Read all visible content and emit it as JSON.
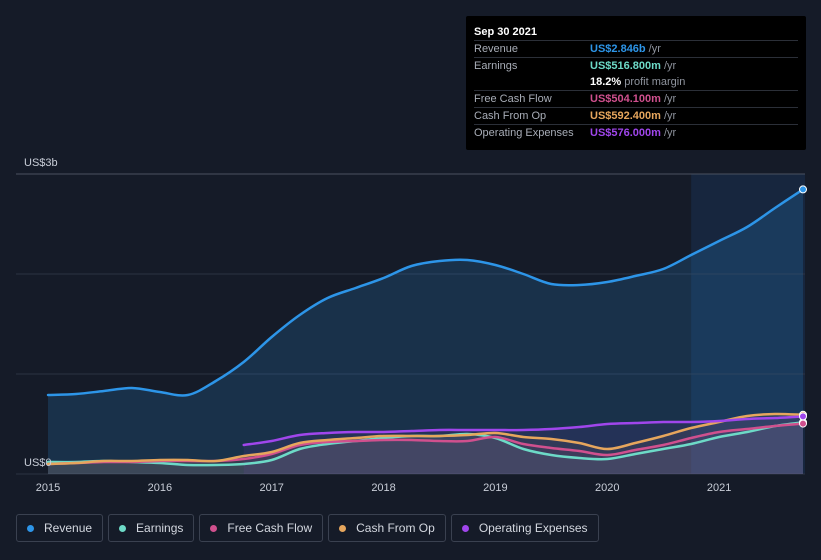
{
  "tooltip": {
    "date": "Sep 30 2021",
    "rows": [
      {
        "label": "Revenue",
        "value": "US$2.846b",
        "unit": "/yr",
        "color": "#2d95e8"
      },
      {
        "label": "Earnings",
        "value": "US$516.800m",
        "unit": "/yr",
        "color": "#6ddac7"
      },
      {
        "label": "",
        "value": "18.2%",
        "unit": "profit margin",
        "color": "#ffffff"
      },
      {
        "label": "Free Cash Flow",
        "value": "US$504.100m",
        "unit": "/yr",
        "color": "#d0508e"
      },
      {
        "label": "Cash From Op",
        "value": "US$592.400m",
        "unit": "/yr",
        "color": "#e6a65d"
      },
      {
        "label": "Operating Expenses",
        "value": "US$576.000m",
        "unit": "/yr",
        "color": "#a046ec"
      }
    ]
  },
  "legend": [
    {
      "label": "Revenue",
      "color": "#2d95e8"
    },
    {
      "label": "Earnings",
      "color": "#6ddac7"
    },
    {
      "label": "Free Cash Flow",
      "color": "#d0508e"
    },
    {
      "label": "Cash From Op",
      "color": "#e6a65d"
    },
    {
      "label": "Operating Expenses",
      "color": "#a046ec"
    }
  ],
  "chart_data": {
    "type": "area",
    "title": "",
    "ylabel_top": "US$3b",
    "ylabel_bottom": "US$0",
    "ylim": [
      0,
      3.0
    ],
    "xlim": [
      2015,
      2021.75
    ],
    "x_ticks": [
      "2015",
      "2016",
      "2017",
      "2018",
      "2019",
      "2020",
      "2021"
    ],
    "x_tick_values": [
      2015,
      2016,
      2017,
      2018,
      2019,
      2020,
      2021
    ],
    "highlight_from": 2020.75,
    "series": [
      {
        "name": "Revenue",
        "color": "#2d95e8",
        "x": [
          2015,
          2015.25,
          2015.5,
          2015.75,
          2016,
          2016.25,
          2016.5,
          2016.75,
          2017,
          2017.25,
          2017.5,
          2017.75,
          2018,
          2018.25,
          2018.5,
          2018.75,
          2019,
          2019.25,
          2019.5,
          2019.75,
          2020,
          2020.25,
          2020.5,
          2020.75,
          2021,
          2021.25,
          2021.5,
          2021.75
        ],
        "values": [
          0.79,
          0.8,
          0.83,
          0.86,
          0.82,
          0.79,
          0.93,
          1.12,
          1.37,
          1.59,
          1.76,
          1.86,
          1.96,
          2.08,
          2.13,
          2.14,
          2.09,
          2.0,
          1.9,
          1.89,
          1.92,
          1.98,
          2.05,
          2.19,
          2.33,
          2.47,
          2.66,
          2.846
        ]
      },
      {
        "name": "Earnings",
        "color": "#6ddac7",
        "x": [
          2015,
          2015.25,
          2015.5,
          2015.75,
          2016,
          2016.25,
          2016.5,
          2016.75,
          2017,
          2017.25,
          2017.5,
          2017.75,
          2018,
          2018.25,
          2018.5,
          2018.75,
          2019,
          2019.25,
          2019.5,
          2019.75,
          2020,
          2020.25,
          2020.5,
          2020.75,
          2021,
          2021.25,
          2021.5,
          2021.75
        ],
        "values": [
          0.12,
          0.12,
          0.13,
          0.12,
          0.11,
          0.09,
          0.09,
          0.1,
          0.14,
          0.25,
          0.3,
          0.33,
          0.36,
          0.38,
          0.38,
          0.4,
          0.36,
          0.25,
          0.19,
          0.16,
          0.15,
          0.2,
          0.25,
          0.3,
          0.37,
          0.42,
          0.48,
          0.517
        ]
      },
      {
        "name": "Free Cash Flow",
        "color": "#d0508e",
        "x": [
          2015,
          2015.25,
          2015.5,
          2015.75,
          2016,
          2016.25,
          2016.5,
          2016.75,
          2017,
          2017.25,
          2017.5,
          2017.75,
          2018,
          2018.25,
          2018.5,
          2018.75,
          2019,
          2019.25,
          2019.5,
          2019.75,
          2020,
          2020.25,
          2020.5,
          2020.75,
          2021,
          2021.25,
          2021.5,
          2021.75
        ],
        "values": [
          0.1,
          0.11,
          0.12,
          0.12,
          0.13,
          0.13,
          0.13,
          0.15,
          0.2,
          0.29,
          0.32,
          0.33,
          0.34,
          0.34,
          0.33,
          0.33,
          0.37,
          0.3,
          0.26,
          0.23,
          0.19,
          0.24,
          0.29,
          0.36,
          0.42,
          0.45,
          0.48,
          0.504
        ]
      },
      {
        "name": "Cash From Op",
        "color": "#e6a65d",
        "x": [
          2015,
          2015.25,
          2015.5,
          2015.75,
          2016,
          2016.25,
          2016.5,
          2016.75,
          2017,
          2017.25,
          2017.5,
          2017.75,
          2018,
          2018.25,
          2018.5,
          2018.75,
          2019,
          2019.25,
          2019.5,
          2019.75,
          2020,
          2020.25,
          2020.5,
          2020.75,
          2021,
          2021.25,
          2021.5,
          2021.75
        ],
        "values": [
          0.1,
          0.11,
          0.13,
          0.13,
          0.14,
          0.14,
          0.13,
          0.18,
          0.22,
          0.31,
          0.34,
          0.36,
          0.38,
          0.38,
          0.38,
          0.39,
          0.41,
          0.37,
          0.35,
          0.31,
          0.25,
          0.31,
          0.38,
          0.46,
          0.52,
          0.58,
          0.6,
          0.592
        ]
      },
      {
        "name": "Operating Expenses",
        "color": "#a046ec",
        "x": [
          2016.75,
          2017,
          2017.25,
          2017.5,
          2017.75,
          2018,
          2018.25,
          2018.5,
          2018.75,
          2019,
          2019.25,
          2019.5,
          2019.75,
          2020,
          2020.25,
          2020.5,
          2020.75,
          2021,
          2021.25,
          2021.5,
          2021.75
        ],
        "values": [
          0.29,
          0.33,
          0.39,
          0.41,
          0.42,
          0.42,
          0.43,
          0.44,
          0.44,
          0.44,
          0.44,
          0.45,
          0.47,
          0.5,
          0.51,
          0.52,
          0.52,
          0.53,
          0.55,
          0.56,
          0.576
        ]
      }
    ]
  }
}
